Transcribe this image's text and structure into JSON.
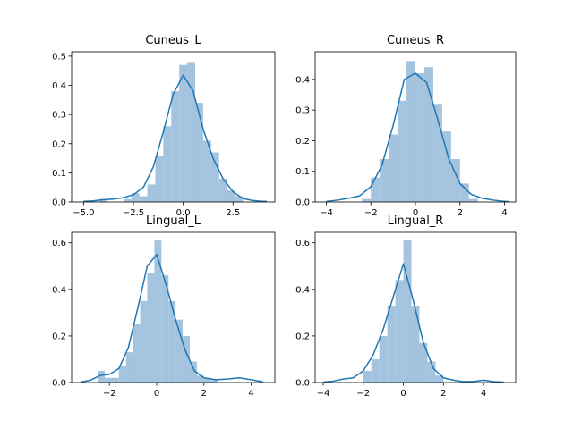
{
  "chart_data": [
    {
      "type": "histogram",
      "title": "Cuneus_L",
      "xlim": [
        -5.6,
        4.6
      ],
      "ylim": [
        0,
        0.515
      ],
      "xticks": [
        -5.0,
        -2.5,
        0.0,
        2.5
      ],
      "xtick_labels": [
        "−5.0",
        "−2.5",
        "0.0",
        "2.5"
      ],
      "yticks": [
        0.0,
        0.1,
        0.2,
        0.3,
        0.4,
        0.5
      ],
      "ytick_labels": [
        "0.0",
        "0.1",
        "0.2",
        "0.3",
        "0.4",
        "0.5"
      ],
      "bin_edges": [
        -5.0,
        -4.6,
        -4.2,
        -3.8,
        -3.4,
        -3.0,
        -2.6,
        -2.2,
        -1.8,
        -1.4,
        -1.0,
        -0.6,
        -0.2,
        0.2,
        0.6,
        1.0,
        1.4,
        1.8,
        2.2,
        2.6,
        3.0,
        3.4,
        3.8,
        4.2
      ],
      "bar_heights": [
        0.005,
        0.0,
        0.01,
        0.0,
        0.0,
        0.01,
        0.03,
        0.02,
        0.06,
        0.16,
        0.26,
        0.38,
        0.47,
        0.48,
        0.34,
        0.21,
        0.17,
        0.08,
        0.04,
        0.02,
        0.0,
        0.0,
        0.005
      ],
      "kde_x": [
        -5.0,
        -4.5,
        -4.0,
        -3.5,
        -3.0,
        -2.5,
        -2.0,
        -1.5,
        -1.0,
        -0.5,
        0.0,
        0.5,
        1.0,
        1.5,
        2.0,
        2.5,
        3.0,
        3.5,
        4.0,
        4.2
      ],
      "kde_y": [
        0.002,
        0.004,
        0.008,
        0.01,
        0.015,
        0.025,
        0.05,
        0.12,
        0.24,
        0.37,
        0.435,
        0.38,
        0.25,
        0.15,
        0.08,
        0.035,
        0.012,
        0.005,
        0.002,
        0.001
      ]
    },
    {
      "type": "histogram",
      "title": "Cuneus_R",
      "xlim": [
        -4.5,
        4.5
      ],
      "ylim": [
        0,
        0.49
      ],
      "xticks": [
        -4,
        -2,
        0,
        2,
        4
      ],
      "xtick_labels": [
        "−4",
        "−2",
        "0",
        "2",
        "4"
      ],
      "yticks": [
        0.0,
        0.1,
        0.2,
        0.3,
        0.4
      ],
      "ytick_labels": [
        "0.0",
        "0.1",
        "0.2",
        "0.3",
        "0.4"
      ],
      "bin_edges": [
        -2.4,
        -2.0,
        -1.6,
        -1.2,
        -0.8,
        -0.4,
        0.0,
        0.4,
        0.8,
        1.2,
        1.6,
        2.0,
        2.4,
        2.8
      ],
      "bar_heights": [
        0.01,
        0.08,
        0.14,
        0.22,
        0.33,
        0.46,
        0.42,
        0.44,
        0.32,
        0.23,
        0.14,
        0.06,
        0.01
      ],
      "kde_x": [
        -4.0,
        -3.5,
        -3.0,
        -2.5,
        -2.0,
        -1.5,
        -1.0,
        -0.5,
        0.0,
        0.5,
        1.0,
        1.5,
        2.0,
        2.5,
        3.0,
        3.5,
        4.0,
        4.2
      ],
      "kde_y": [
        0.002,
        0.006,
        0.012,
        0.02,
        0.05,
        0.12,
        0.25,
        0.4,
        0.42,
        0.39,
        0.27,
        0.14,
        0.06,
        0.025,
        0.012,
        0.006,
        0.002,
        0.001
      ]
    },
    {
      "type": "histogram",
      "title": "Lingual_L",
      "xlim": [
        -3.6,
        5.0
      ],
      "ylim": [
        0,
        0.645
      ],
      "xticks": [
        -2,
        0,
        2,
        4
      ],
      "xtick_labels": [
        "−2",
        "0",
        "2",
        "4"
      ],
      "yticks": [
        0.0,
        0.2,
        0.4,
        0.6
      ],
      "ytick_labels": [
        "0.0",
        "0.2",
        "0.4",
        "0.6"
      ],
      "bin_edges": [
        -2.5,
        -2.2,
        -1.9,
        -1.6,
        -1.3,
        -1.0,
        -0.7,
        -0.4,
        -0.1,
        0.2,
        0.5,
        0.8,
        1.1,
        1.4,
        1.7,
        2.0,
        2.3,
        2.6
      ],
      "bar_heights": [
        0.05,
        0.02,
        0.02,
        0.07,
        0.13,
        0.25,
        0.35,
        0.47,
        0.61,
        0.46,
        0.35,
        0.27,
        0.2,
        0.09,
        0.03,
        0.02,
        0.01
      ],
      "kde_x": [
        -3.2,
        -2.8,
        -2.4,
        -2.0,
        -1.6,
        -1.2,
        -0.8,
        -0.4,
        0.0,
        0.4,
        0.8,
        1.2,
        1.6,
        2.0,
        2.5,
        3.0,
        3.5,
        4.0,
        4.5
      ],
      "kde_y": [
        0.003,
        0.01,
        0.03,
        0.035,
        0.06,
        0.15,
        0.32,
        0.5,
        0.55,
        0.42,
        0.27,
        0.14,
        0.05,
        0.02,
        0.012,
        0.015,
        0.02,
        0.012,
        0.003
      ]
    },
    {
      "type": "histogram",
      "title": "Lingual_R",
      "xlim": [
        -4.4,
        5.6
      ],
      "ylim": [
        0,
        0.645
      ],
      "xticks": [
        -4,
        -2,
        0,
        2,
        4
      ],
      "xtick_labels": [
        "−4",
        "−2",
        "0",
        "2",
        "4"
      ],
      "yticks": [
        0.0,
        0.2,
        0.4,
        0.6
      ],
      "ytick_labels": [
        "0.0",
        "0.2",
        "0.4",
        "0.6"
      ],
      "bin_edges": [
        -2.0,
        -1.6,
        -1.2,
        -0.8,
        -0.4,
        0.0,
        0.4,
        0.8,
        1.2,
        1.6,
        2.0
      ],
      "bar_heights": [
        0.05,
        0.1,
        0.2,
        0.33,
        0.44,
        0.61,
        0.33,
        0.17,
        0.09,
        0.03
      ],
      "kde_x": [
        -4.0,
        -3.5,
        -3.0,
        -2.5,
        -2.0,
        -1.5,
        -1.0,
        -0.5,
        0.0,
        0.5,
        1.0,
        1.5,
        2.0,
        2.5,
        3.0,
        3.5,
        4.0,
        4.5,
        5.0
      ],
      "kde_y": [
        0.002,
        0.006,
        0.015,
        0.02,
        0.05,
        0.12,
        0.23,
        0.37,
        0.51,
        0.35,
        0.17,
        0.06,
        0.02,
        0.01,
        0.004,
        0.005,
        0.01,
        0.004,
        0.002
      ]
    }
  ],
  "colors": {
    "bar_fill": "#a3c3de",
    "kde_line": "#1f77b4"
  }
}
